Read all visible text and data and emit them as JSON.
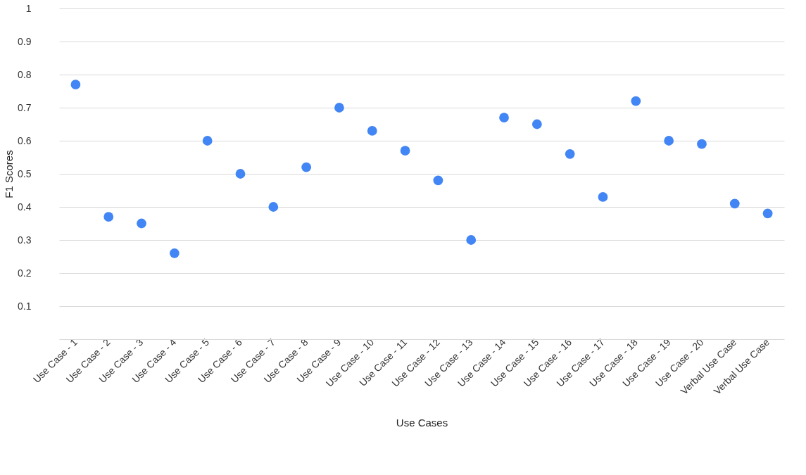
{
  "chart_data": {
    "type": "scatter",
    "xlabel": "Use Cases",
    "ylabel": "F1 Scores",
    "categories": [
      "Use Case - 1",
      "Use Case - 2",
      "Use Case - 3",
      "Use Case - 4",
      "Use Case - 5",
      "Use Case - 6",
      "Use Case - 7",
      "Use Case - 8",
      "Use Case - 9",
      "Use Case - 10",
      "Use Case - 11",
      "Use Case - 12",
      "Use Case - 13",
      "Use Case - 14",
      "Use Case - 15",
      "Use Case - 16",
      "Use Case - 17",
      "Use Case - 18",
      "Use Case - 19",
      "Use Case - 20",
      "Verbal Use Case",
      "Verbal Use Case"
    ],
    "series": [
      {
        "color": "#4285f4",
        "values": [
          0.77,
          0.37,
          0.35,
          0.26,
          0.6,
          0.5,
          0.4,
          0.52,
          0.7,
          0.63,
          0.57,
          0.48,
          0.3,
          0.67,
          0.65,
          0.56,
          0.43,
          0.72,
          0.6,
          0.59,
          0.41,
          0.38
        ]
      }
    ],
    "ylim": [
      0,
      1
    ],
    "yticks": [
      0.1,
      0.2,
      0.3,
      0.4,
      0.5,
      0.6,
      0.7,
      0.8,
      0.9,
      1
    ],
    "grid": "y",
    "marker": "circle"
  }
}
